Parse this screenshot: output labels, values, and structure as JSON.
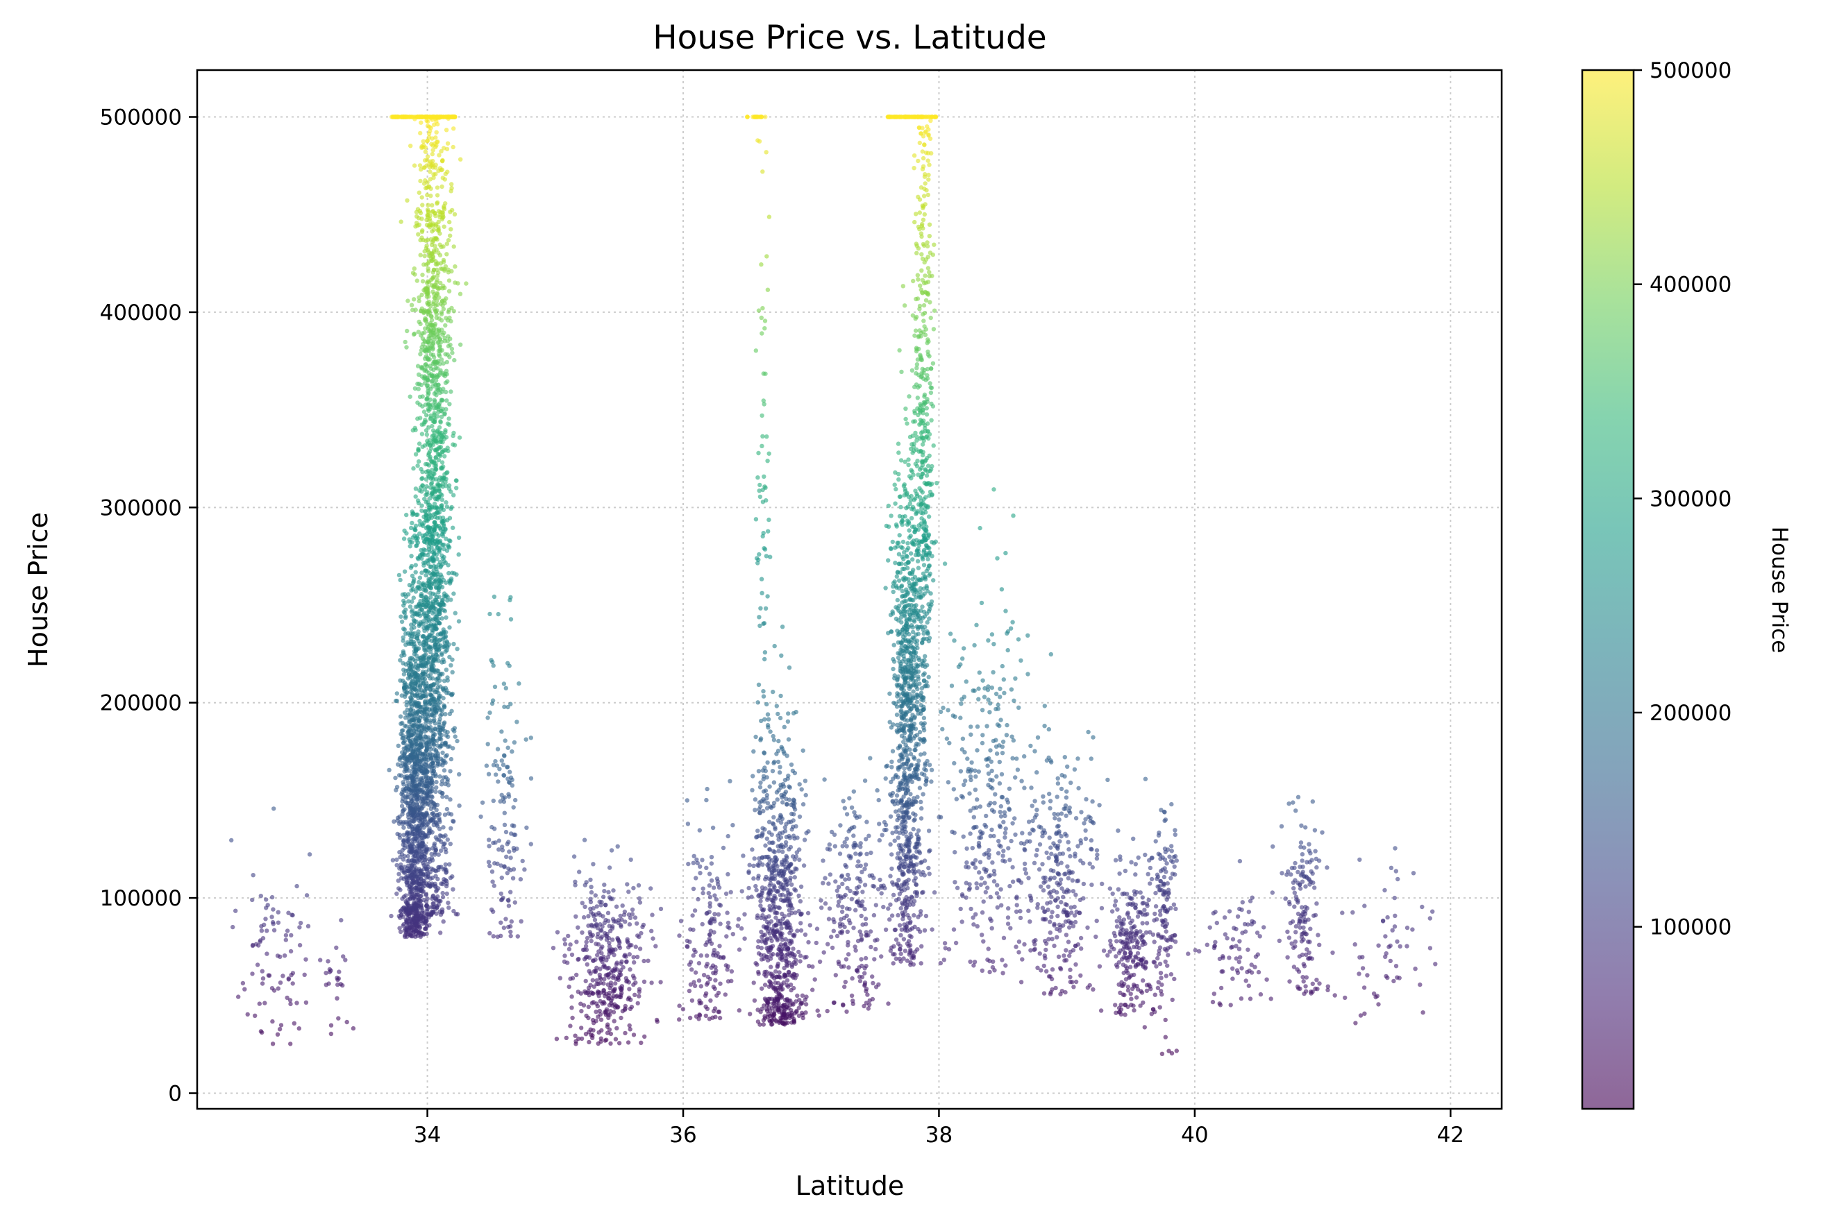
{
  "chart_data": {
    "type": "scatter",
    "title": "House Price vs. Latitude",
    "xlabel": "Latitude",
    "ylabel": "House Price",
    "xlim": [
      32.2,
      42.4
    ],
    "ylim": [
      -8000,
      524000
    ],
    "x_ticks": [
      34,
      36,
      38,
      40,
      42
    ],
    "y_ticks": [
      0,
      100000,
      200000,
      300000,
      400000,
      500000
    ],
    "grid": true,
    "colormap": "viridis",
    "colorbar": {
      "label": "House Price",
      "range": [
        15000,
        500001
      ],
      "ticks": [
        100000,
        200000,
        300000,
        400000,
        500000
      ]
    },
    "colors": {
      "viridis_stops": [
        "#440154",
        "#482878",
        "#3e4989",
        "#31688e",
        "#26828e",
        "#1f9e89",
        "#35b779",
        "#6ece58",
        "#b5de2b",
        "#fde725"
      ]
    },
    "point_alpha": 0.6,
    "clusters": [
      {
        "lat": 32.8,
        "lat_spread": 0.25,
        "y_mean": 75000,
        "y_spread": 28000,
        "y_min": 25000,
        "y_max": 160000,
        "count": 90
      },
      {
        "lat": 33.3,
        "lat_spread": 0.12,
        "y_mean": 55000,
        "y_spread": 15000,
        "y_min": 30000,
        "y_max": 90000,
        "count": 25
      },
      {
        "lat": 33.9,
        "lat_spread": 0.11,
        "y_mean": 155000,
        "y_spread": 60000,
        "y_min": 80000,
        "y_max": 300000,
        "count": 1300
      },
      {
        "lat": 34.05,
        "lat_spread": 0.13,
        "y_mean": 230000,
        "y_spread": 85000,
        "y_min": 90000,
        "y_max": 500000,
        "count": 1300
      },
      {
        "lat": 34.05,
        "lat_spread": 0.13,
        "y_mean": 400000,
        "y_spread": 60000,
        "y_min": 280000,
        "y_max": 500000,
        "count": 650
      },
      {
        "lat": 34.6,
        "lat_spread": 0.15,
        "y_mean": 140000,
        "y_spread": 45000,
        "y_min": 80000,
        "y_max": 260000,
        "count": 140
      },
      {
        "lat": 35.4,
        "lat_spread": 0.28,
        "y_mean": 68000,
        "y_spread": 22000,
        "y_min": 25000,
        "y_max": 180000,
        "count": 420
      },
      {
        "lat": 36.2,
        "lat_spread": 0.2,
        "y_mean": 80000,
        "y_spread": 30000,
        "y_min": 35000,
        "y_max": 200000,
        "count": 170
      },
      {
        "lat": 36.75,
        "lat_spread": 0.18,
        "y_mean": 90000,
        "y_spread": 45000,
        "y_min": 35000,
        "y_max": 300000,
        "count": 750
      },
      {
        "lat": 36.62,
        "lat_spread": 0.05,
        "y_mean": 280000,
        "y_spread": 110000,
        "y_min": 100000,
        "y_max": 500000,
        "count": 90
      },
      {
        "lat": 37.35,
        "lat_spread": 0.22,
        "y_mean": 95000,
        "y_spread": 30000,
        "y_min": 40000,
        "y_max": 210000,
        "count": 230
      },
      {
        "lat": 37.75,
        "lat_spread": 0.12,
        "y_mean": 190000,
        "y_spread": 70000,
        "y_min": 65000,
        "y_max": 500000,
        "count": 1000
      },
      {
        "lat": 37.88,
        "lat_spread": 0.07,
        "y_mean": 330000,
        "y_spread": 90000,
        "y_min": 90000,
        "y_max": 500000,
        "count": 450
      },
      {
        "lat": 38.4,
        "lat_spread": 0.3,
        "y_mean": 150000,
        "y_spread": 50000,
        "y_min": 60000,
        "y_max": 360000,
        "count": 330
      },
      {
        "lat": 38.95,
        "lat_spread": 0.25,
        "y_mean": 105000,
        "y_spread": 35000,
        "y_min": 50000,
        "y_max": 320000,
        "count": 300
      },
      {
        "lat": 39.5,
        "lat_spread": 0.15,
        "y_mean": 75000,
        "y_spread": 22000,
        "y_min": 40000,
        "y_max": 170000,
        "count": 230
      },
      {
        "lat": 39.75,
        "lat_spread": 0.1,
        "y_mean": 95000,
        "y_spread": 30000,
        "y_min": 15000,
        "y_max": 200000,
        "count": 150
      },
      {
        "lat": 40.3,
        "lat_spread": 0.28,
        "y_mean": 75000,
        "y_spread": 20000,
        "y_min": 45000,
        "y_max": 200000,
        "count": 80
      },
      {
        "lat": 40.85,
        "lat_spread": 0.12,
        "y_mean": 90000,
        "y_spread": 25000,
        "y_min": 50000,
        "y_max": 165000,
        "count": 150
      },
      {
        "lat": 41.5,
        "lat_spread": 0.35,
        "y_mean": 70000,
        "y_spread": 22000,
        "y_min": 35000,
        "y_max": 155000,
        "count": 60
      }
    ],
    "capped_points": [
      {
        "lat_range": [
          33.72,
          34.22
        ],
        "value": 500001,
        "count": 170
      },
      {
        "lat_range": [
          36.5,
          36.65
        ],
        "value": 500001,
        "count": 20
      },
      {
        "lat_range": [
          37.6,
          37.98
        ],
        "value": 500001,
        "count": 90
      }
    ]
  }
}
